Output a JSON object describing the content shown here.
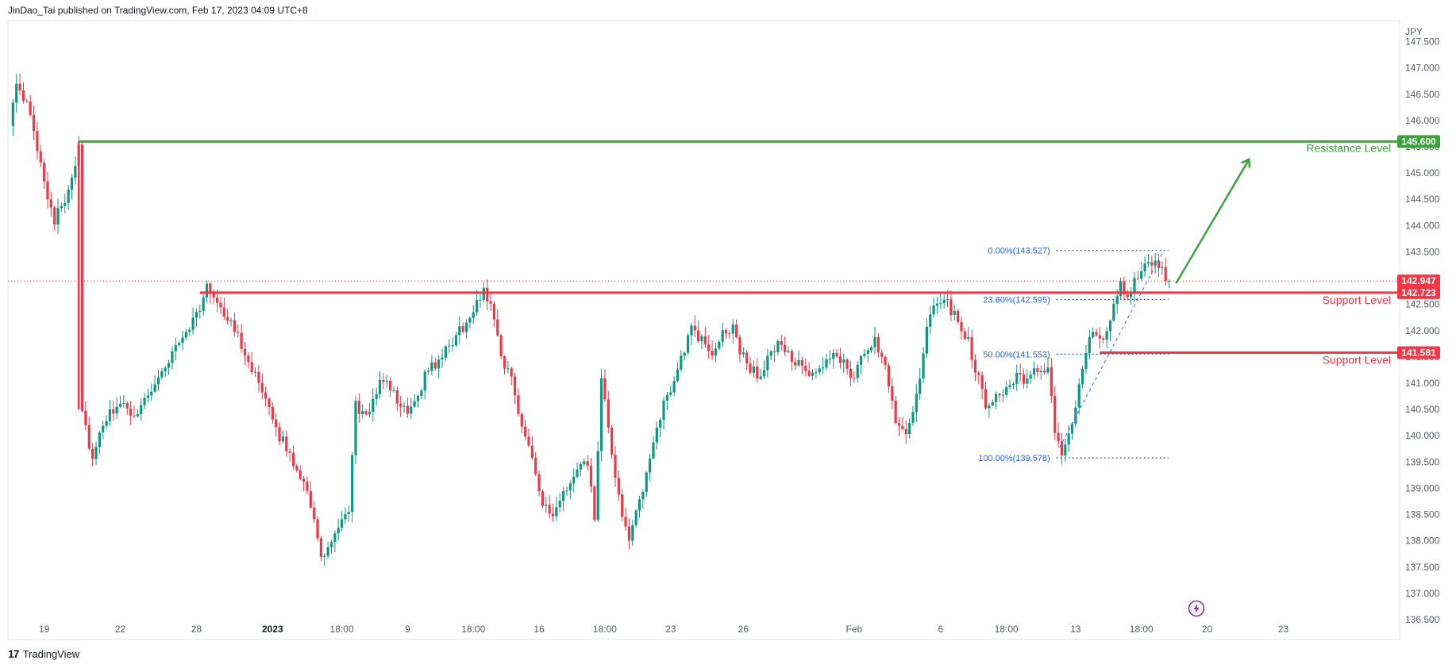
{
  "header": {
    "published_text": "JinDao_Tai published on TradingView.com, Feb 17, 2023 04:09 UTC+8"
  },
  "footer": {
    "logo_mark": "17",
    "logo_text": "TradingView"
  },
  "colors": {
    "up": "#089981",
    "down": "#f23645",
    "support": "#f23645",
    "resistance": "#3aa43a",
    "fib": "#2962ff",
    "axis_text": "#555b66"
  },
  "icons": {
    "replay": "lightning-icon"
  },
  "chart_data": {
    "type": "candlestick",
    "currency": "JPY",
    "ylim": [
      136.5,
      147.75
    ],
    "y_ticks": [
      {
        "value": 136.5,
        "label": "136.500"
      },
      {
        "value": 137.0,
        "label": "137.000"
      },
      {
        "value": 137.5,
        "label": "137.500"
      },
      {
        "value": 138.0,
        "label": "138.000"
      },
      {
        "value": 138.5,
        "label": "138.500"
      },
      {
        "value": 139.0,
        "label": "139.000"
      },
      {
        "value": 139.5,
        "label": "139.500"
      },
      {
        "value": 140.0,
        "label": "140.000"
      },
      {
        "value": 140.5,
        "label": "140.500"
      },
      {
        "value": 141.0,
        "label": "141.000"
      },
      {
        "value": 141.5,
        "label": "141.500"
      },
      {
        "value": 142.0,
        "label": "142.000"
      },
      {
        "value": 142.5,
        "label": "142.500"
      },
      {
        "value": 143.0,
        "label": "143.000"
      },
      {
        "value": 143.5,
        "label": "143.500"
      },
      {
        "value": 144.0,
        "label": "144.000"
      },
      {
        "value": 144.5,
        "label": "144.500"
      },
      {
        "value": 145.0,
        "label": "145.000"
      },
      {
        "value": 145.5,
        "label": "145.500"
      },
      {
        "value": 146.0,
        "label": "146.000"
      },
      {
        "value": 146.5,
        "label": "146.500"
      },
      {
        "value": 147.0,
        "label": "147.000"
      },
      {
        "value": 147.5,
        "label": "147.500"
      }
    ],
    "x_labels": [
      {
        "label": "19",
        "index": 10,
        "bold": false
      },
      {
        "label": "22",
        "index": 32,
        "bold": false
      },
      {
        "label": "28",
        "index": 54,
        "bold": false
      },
      {
        "label": "2023",
        "index": 76,
        "bold": true
      },
      {
        "label": "18:00",
        "index": 96,
        "bold": false
      },
      {
        "label": "9",
        "index": 115,
        "bold": false
      },
      {
        "label": "18:00",
        "index": 134,
        "bold": false
      },
      {
        "label": "16",
        "index": 153,
        "bold": false
      },
      {
        "label": "18:00",
        "index": 172,
        "bold": false
      },
      {
        "label": "23",
        "index": 191,
        "bold": false
      },
      {
        "label": "26",
        "index": 212,
        "bold": false
      },
      {
        "label": "Feb",
        "index": 244,
        "bold": false
      },
      {
        "label": "6",
        "index": 269,
        "bold": false
      },
      {
        "label": "18:00",
        "index": 288,
        "bold": false
      },
      {
        "label": "13",
        "index": 308,
        "bold": false
      },
      {
        "label": "18:00",
        "index": 327,
        "bold": false
      },
      {
        "label": "20",
        "index": 346,
        "bold": false
      },
      {
        "label": "23",
        "index": 368,
        "bold": false
      }
    ],
    "bar_count": 392,
    "anchors": [
      [
        0,
        146.0
      ],
      [
        2,
        146.6
      ],
      [
        5,
        146.3
      ],
      [
        8,
        145.5
      ],
      [
        11,
        144.6
      ],
      [
        13,
        144.1
      ],
      [
        16,
        144.5
      ],
      [
        19,
        145.2
      ],
      [
        20,
        145.6
      ],
      [
        21,
        140.5
      ],
      [
        24,
        139.5
      ],
      [
        27,
        140.2
      ],
      [
        31,
        140.6
      ],
      [
        36,
        140.4
      ],
      [
        40,
        140.8
      ],
      [
        44,
        141.2
      ],
      [
        49,
        141.8
      ],
      [
        54,
        142.3
      ],
      [
        57,
        142.8
      ],
      [
        60,
        142.6
      ],
      [
        63,
        142.2
      ],
      [
        66,
        141.9
      ],
      [
        70,
        141.3
      ],
      [
        74,
        140.6
      ],
      [
        78,
        140.0
      ],
      [
        82,
        139.5
      ],
      [
        86,
        139.0
      ],
      [
        88,
        138.4
      ],
      [
        90,
        137.6
      ],
      [
        93,
        138.0
      ],
      [
        96,
        138.3
      ],
      [
        98,
        138.6
      ],
      [
        100,
        140.6
      ],
      [
        103,
        140.3
      ],
      [
        106,
        140.9
      ],
      [
        109,
        141.1
      ],
      [
        112,
        140.6
      ],
      [
        115,
        140.5
      ],
      [
        118,
        140.8
      ],
      [
        121,
        141.3
      ],
      [
        124,
        141.4
      ],
      [
        127,
        141.7
      ],
      [
        130,
        142.0
      ],
      [
        133,
        142.2
      ],
      [
        137,
        142.8
      ],
      [
        140,
        142.3
      ],
      [
        142,
        141.5
      ],
      [
        145,
        141.1
      ],
      [
        147,
        140.4
      ],
      [
        150,
        139.9
      ],
      [
        152,
        139.3
      ],
      [
        154,
        138.7
      ],
      [
        157,
        138.4
      ],
      [
        160,
        138.9
      ],
      [
        164,
        139.3
      ],
      [
        167,
        139.5
      ],
      [
        169,
        138.4
      ],
      [
        171,
        141.0
      ],
      [
        173,
        140.2
      ],
      [
        175,
        139.1
      ],
      [
        177,
        138.5
      ],
      [
        179,
        138.1
      ],
      [
        182,
        138.7
      ],
      [
        184,
        139.2
      ],
      [
        186,
        139.9
      ],
      [
        188,
        140.4
      ],
      [
        191,
        140.9
      ],
      [
        194,
        141.5
      ],
      [
        197,
        142.0
      ],
      [
        200,
        141.8
      ],
      [
        203,
        141.6
      ],
      [
        206,
        141.9
      ],
      [
        209,
        142.1
      ],
      [
        211,
        141.6
      ],
      [
        214,
        141.3
      ],
      [
        217,
        141.1
      ],
      [
        220,
        141.6
      ],
      [
        223,
        141.8
      ],
      [
        226,
        141.4
      ],
      [
        229,
        141.3
      ],
      [
        232,
        141.1
      ],
      [
        235,
        141.3
      ],
      [
        238,
        141.6
      ],
      [
        241,
        141.4
      ],
      [
        244,
        141.1
      ],
      [
        247,
        141.6
      ],
      [
        250,
        141.8
      ],
      [
        253,
        141.4
      ],
      [
        256,
        140.3
      ],
      [
        259,
        140.1
      ],
      [
        262,
        140.7
      ],
      [
        265,
        142.0
      ],
      [
        268,
        142.6
      ],
      [
        271,
        142.5
      ],
      [
        274,
        142.2
      ],
      [
        277,
        141.8
      ],
      [
        279,
        141.3
      ],
      [
        282,
        140.6
      ],
      [
        285,
        140.8
      ],
      [
        288,
        140.9
      ],
      [
        291,
        141.1
      ],
      [
        294,
        141.0
      ],
      [
        297,
        141.3
      ],
      [
        300,
        141.2
      ],
      [
        302,
        140.1
      ],
      [
        304,
        139.7
      ],
      [
        306,
        140.0
      ],
      [
        308,
        140.6
      ],
      [
        310,
        141.3
      ],
      [
        313,
        142.0
      ],
      [
        316,
        141.8
      ],
      [
        319,
        142.4
      ],
      [
        321,
        142.9
      ],
      [
        323,
        142.6
      ],
      [
        325,
        142.9
      ],
      [
        327,
        143.2
      ],
      [
        329,
        143.4
      ],
      [
        331,
        143.3
      ],
      [
        333,
        143.3
      ],
      [
        334,
        143.0
      ],
      [
        335,
        142.95
      ]
    ],
    "levels": [
      {
        "name": "Resistance Level",
        "value": 145.6,
        "label": "145.600",
        "kind": "resistance",
        "from_index": 20
      },
      {
        "name": "Support Level",
        "value": 142.723,
        "label": "142.723",
        "kind": "support",
        "from_index": 55
      },
      {
        "name": "Support Level",
        "value": 141.581,
        "label": "141.581",
        "kind": "support",
        "from_index": 315
      }
    ],
    "last_price": {
      "value": 142.947,
      "label": "142.947"
    },
    "fibonacci": {
      "from_index": 302,
      "to_index": 333,
      "levels": [
        {
          "ratio_label": "0.00%",
          "price": 143.527,
          "text": "0.00%(143.527)"
        },
        {
          "ratio_label": "23.60%",
          "price": 142.595,
          "text": "23.60%(142.595)"
        },
        {
          "ratio_label": "50.00%",
          "price": 141.553,
          "text": "50.00%(141.553)"
        },
        {
          "ratio_label": "100.00%",
          "price": 139.578,
          "text": "100.00%(139.578)"
        }
      ]
    },
    "projection_arrow": {
      "from_index": 337,
      "from_price": 142.9,
      "to_index": 358,
      "to_price": 145.25
    }
  }
}
